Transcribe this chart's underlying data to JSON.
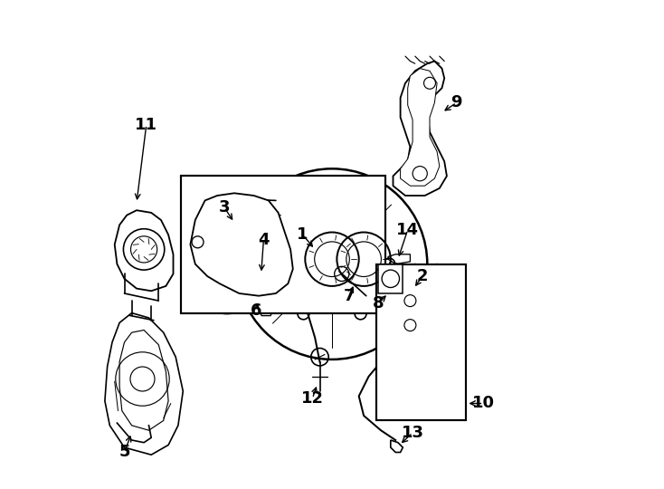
{
  "background": "#ffffff",
  "line_color": "#000000",
  "line_width": 1.2,
  "font_size": 13
}
